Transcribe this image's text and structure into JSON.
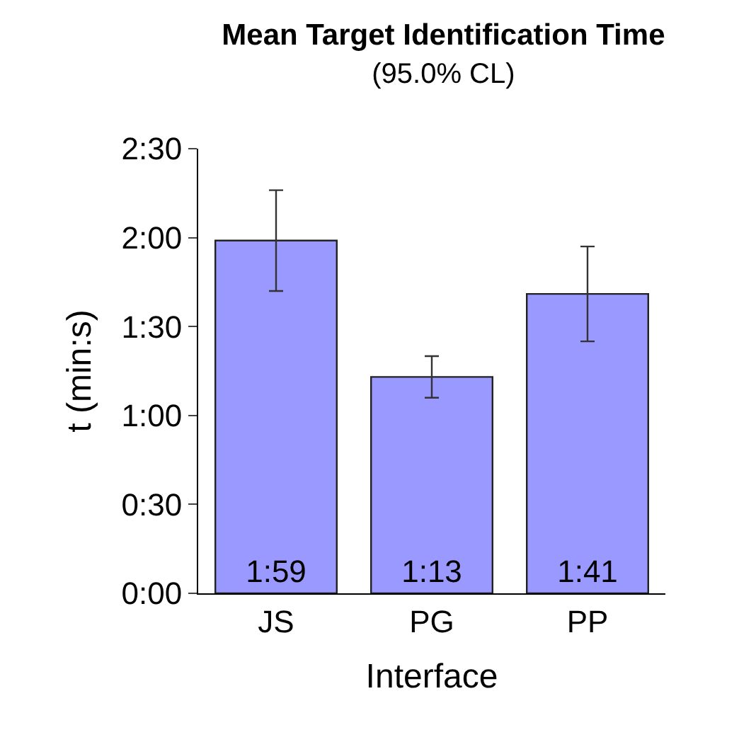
{
  "chart_data": {
    "type": "bar",
    "title": "Mean Target Identification Time",
    "subtitle": "(95.0% CL)",
    "xlabel": "Interface",
    "ylabel": "t (min:s)",
    "categories": [
      "JS",
      "PG",
      "PP"
    ],
    "values": [
      119,
      73,
      101
    ],
    "value_labels": [
      "1:59",
      "1:13",
      "1:41"
    ],
    "errors": [
      17,
      7,
      16
    ],
    "color": "#9999ff",
    "ylim": [
      0,
      150
    ],
    "yticks": [
      {
        "value": 0,
        "label": "0:00"
      },
      {
        "value": 30,
        "label": "0:30"
      },
      {
        "value": 60,
        "label": "1:00"
      },
      {
        "value": 90,
        "label": "1:30"
      },
      {
        "value": 120,
        "label": "2:00"
      },
      {
        "value": 150,
        "label": "2:30"
      }
    ],
    "grid": false
  }
}
